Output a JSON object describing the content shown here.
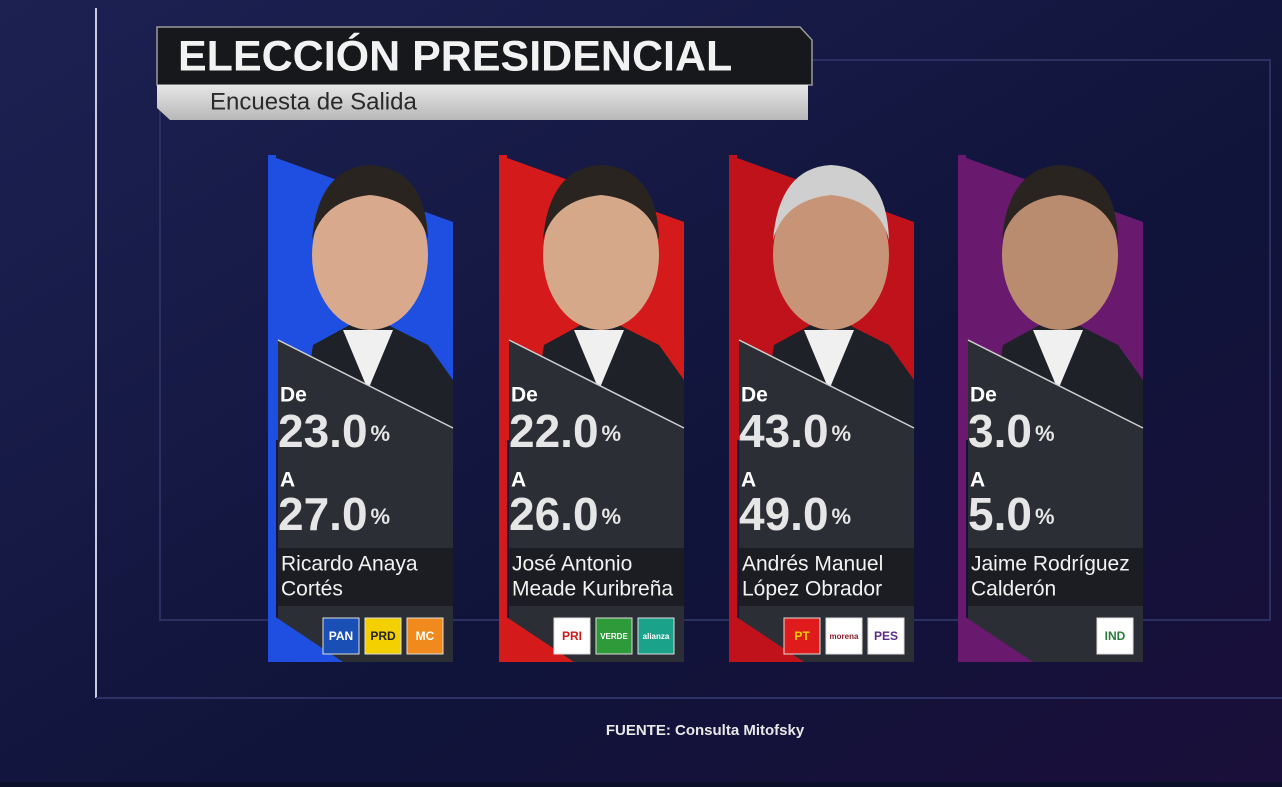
{
  "header": {
    "title": "ELECCIÓN PRESIDENCIAL",
    "subtitle": "Encuesta de Salida"
  },
  "labels": {
    "from": "De",
    "to": "A",
    "unit": "%"
  },
  "candidates": [
    {
      "from": "23.0",
      "to": "27.0",
      "name": [
        "Ricardo Anaya",
        "Cortés"
      ],
      "color": "#1f4fe0",
      "skin": "#d8a98c",
      "logos": [
        {
          "label": "PAN",
          "bg": "#1a4fb5",
          "fg": "#ffffff"
        },
        {
          "label": "PRD",
          "bg": "#f4d000",
          "fg": "#222222"
        },
        {
          "label": "MC",
          "bg": "#f08a1c",
          "fg": "#ffffff"
        }
      ]
    },
    {
      "from": "22.0",
      "to": "26.0",
      "name": [
        "José Antonio",
        "Meade Kuribreña"
      ],
      "color": "#d41a1a",
      "skin": "#d6a88a",
      "logos": [
        {
          "label": "PRI",
          "bg": "#ffffff",
          "fg": "#d01818"
        },
        {
          "label": "VERDE",
          "bg": "#2e9a3a",
          "fg": "#ffffff"
        },
        {
          "label": "alianza",
          "bg": "#1aa38a",
          "fg": "#ffffff"
        }
      ]
    },
    {
      "from": "43.0",
      "to": "49.0",
      "name": [
        "Andrés Manuel",
        "López Obrador"
      ],
      "color": "#c0121a",
      "skin": "#c89478",
      "logos": [
        {
          "label": "PT",
          "bg": "#e01b1b",
          "fg": "#f4d000"
        },
        {
          "label": "morena",
          "bg": "#ffffff",
          "fg": "#8a1c2a"
        },
        {
          "label": "PES",
          "bg": "#ffffff",
          "fg": "#5b2a86"
        }
      ]
    },
    {
      "from": "3.0",
      "to": "5.0",
      "name": [
        "Jaime Rodríguez",
        "Calderón"
      ],
      "color": "#6a1a6e",
      "skin": "#b98c70",
      "logos": [
        {
          "label": "IND",
          "bg": "#ffffff",
          "fg": "#2a7a3a"
        }
      ]
    }
  ],
  "source": "FUENTE: Consulta Mitofsky"
}
